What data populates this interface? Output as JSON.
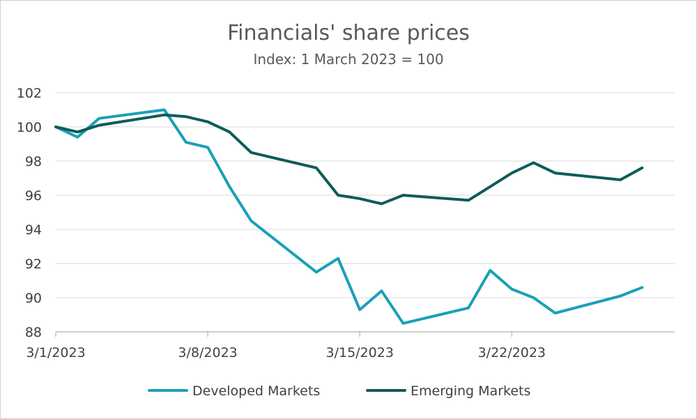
{
  "chart_data": {
    "type": "line",
    "title": "Financials' share prices",
    "subtitle": "Index: 1 March 2023 = 100",
    "xlabel": "",
    "ylabel": "",
    "ylim": [
      88,
      102
    ],
    "y_ticks": [
      88,
      90,
      92,
      94,
      96,
      98,
      100,
      102
    ],
    "y_tick_labels": [
      "88",
      "90",
      "92",
      "94",
      "96",
      "98",
      "100",
      "102"
    ],
    "x_ticks": [
      0,
      7,
      14,
      21
    ],
    "x_tick_labels": [
      "3/1/2023",
      "3/8/2023",
      "3/15/2023",
      "3/22/2023"
    ],
    "xlim": [
      0,
      28.5
    ],
    "grid": true,
    "legend_position": "bottom",
    "series": [
      {
        "name": "Developed Markets",
        "color": "#1aa0b8",
        "x": [
          0,
          1,
          2,
          5,
          6,
          7,
          8,
          9,
          12,
          13,
          14,
          15,
          16,
          19,
          20,
          21,
          22,
          23,
          26,
          27
        ],
        "values": [
          100.0,
          99.4,
          100.5,
          101.0,
          99.1,
          98.8,
          96.5,
          94.5,
          91.5,
          92.3,
          89.3,
          90.4,
          88.5,
          89.4,
          91.6,
          90.5,
          90.0,
          89.1,
          90.1,
          90.6
        ]
      },
      {
        "name": "Emerging Markets",
        "color": "#0e5c5a",
        "x": [
          0,
          1,
          2,
          5,
          6,
          7,
          8,
          9,
          12,
          13,
          14,
          15,
          16,
          19,
          20,
          21,
          22,
          23,
          26,
          27
        ],
        "values": [
          100.0,
          99.7,
          100.1,
          100.7,
          100.6,
          100.3,
          99.7,
          98.5,
          97.6,
          96.0,
          95.8,
          95.5,
          96.0,
          95.7,
          96.5,
          97.3,
          97.9,
          97.3,
          96.9,
          97.6
        ]
      }
    ]
  }
}
